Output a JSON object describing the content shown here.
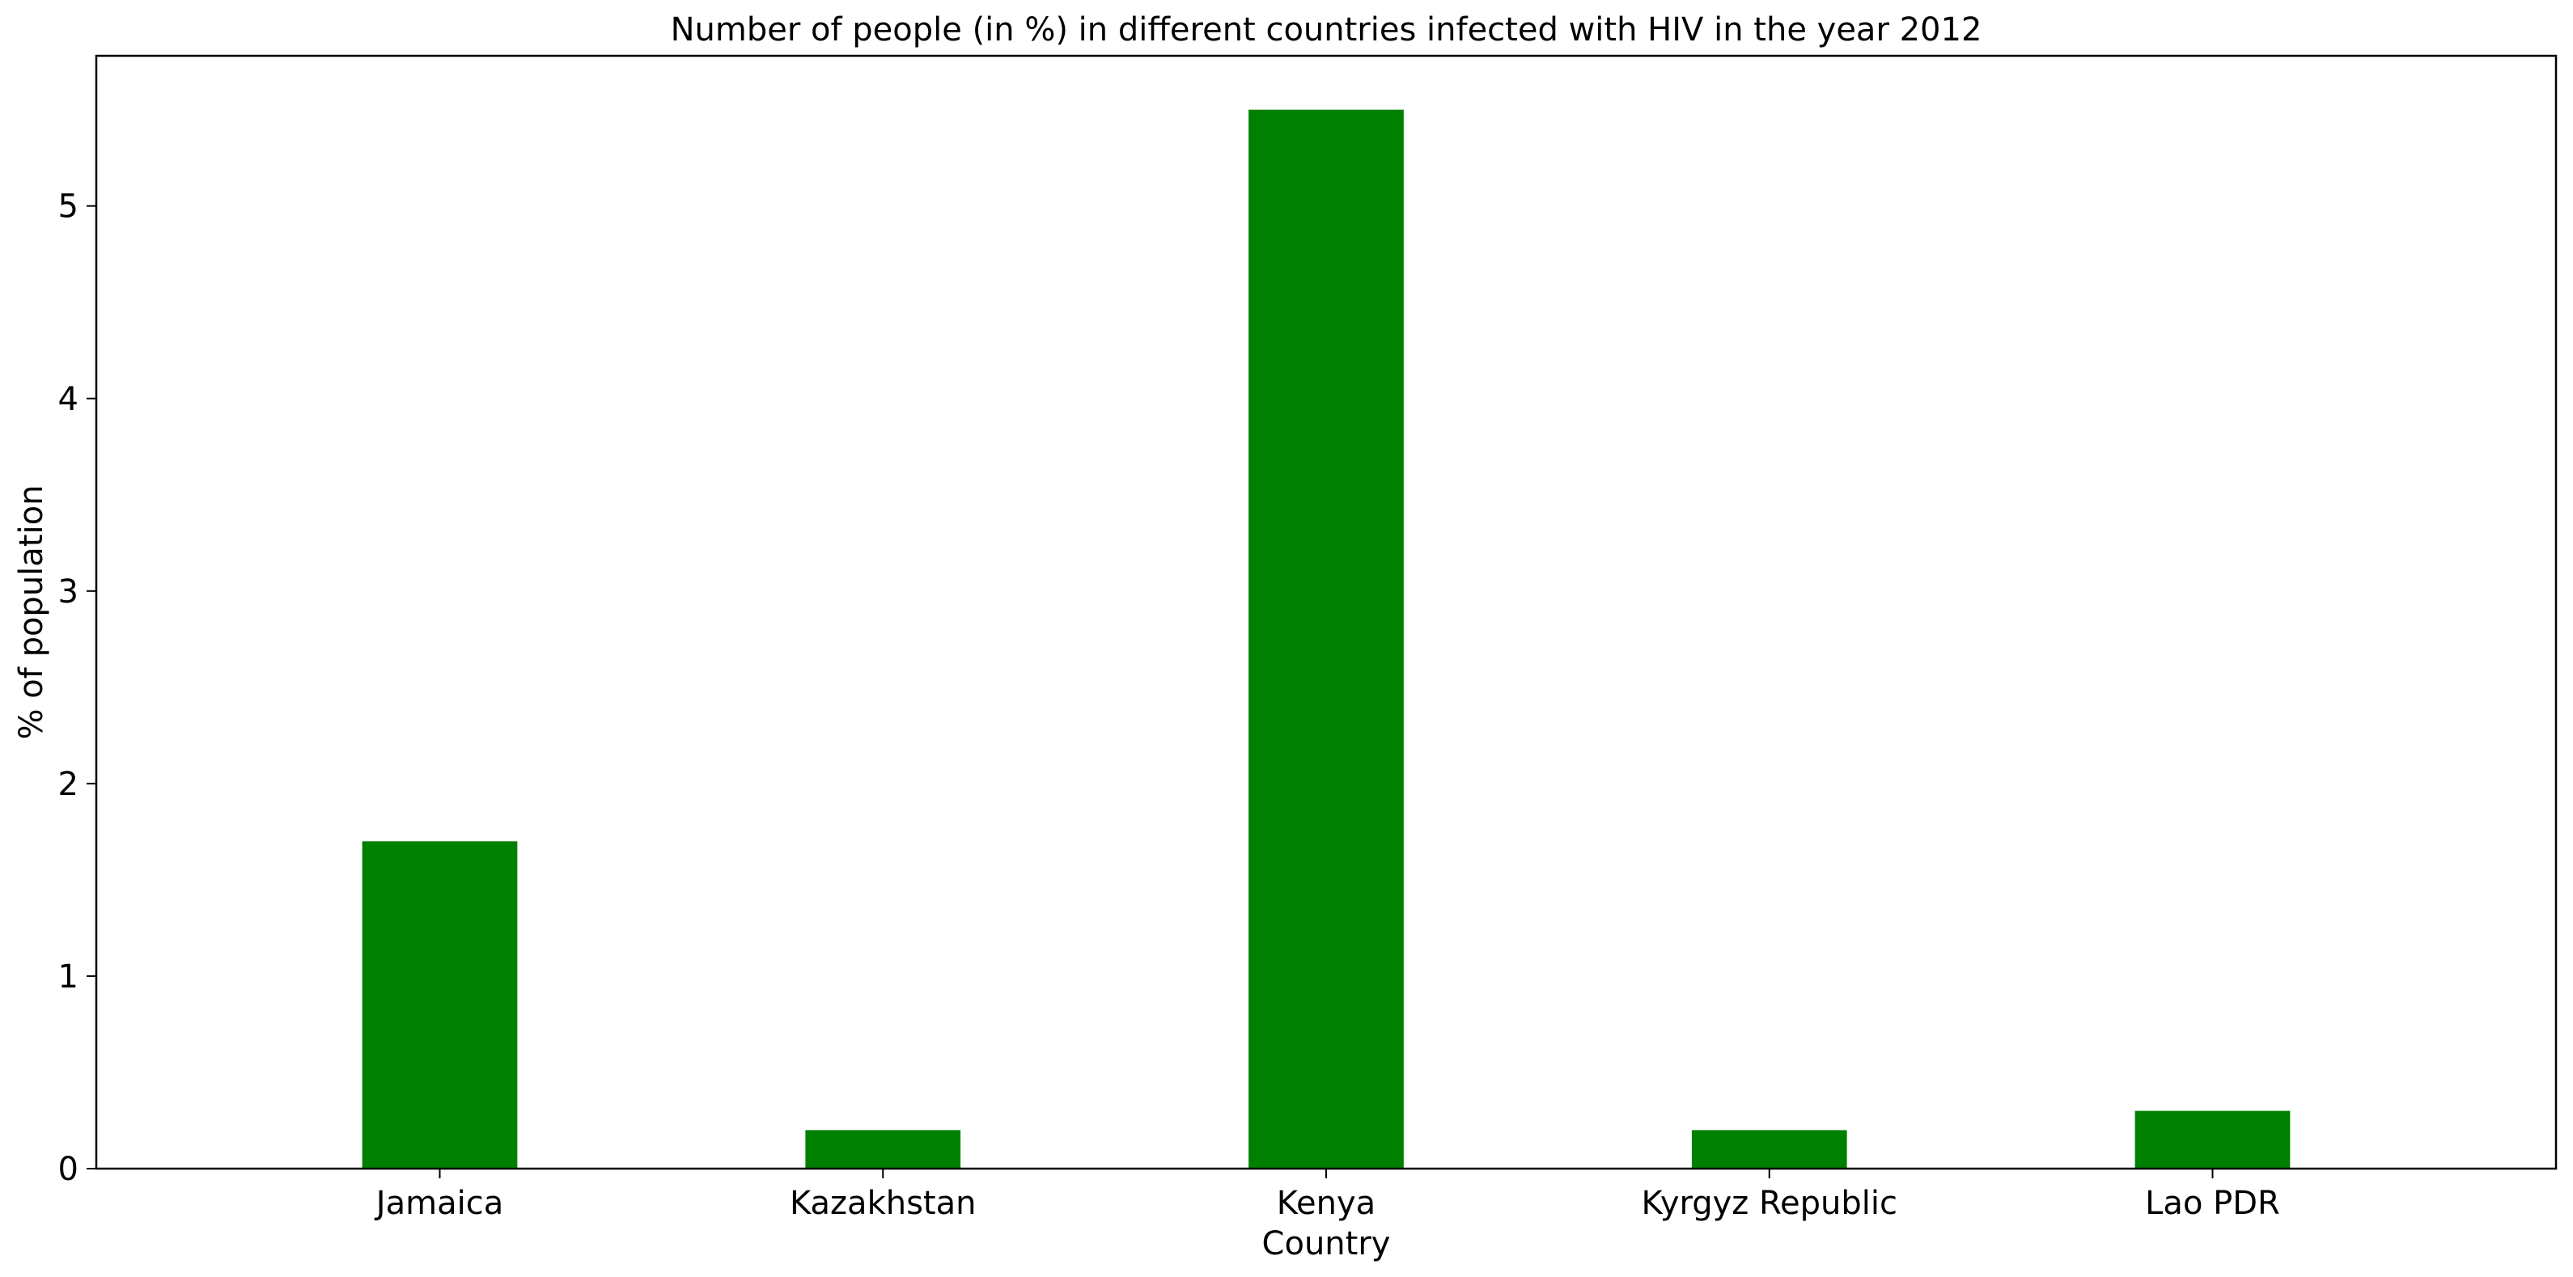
{
  "chart_data": {
    "type": "bar",
    "title": "Number of people (in %) in different countries infected with HIV in the year 2012",
    "xlabel": "Country",
    "ylabel": "% of population",
    "categories": [
      "Jamaica",
      "Kazakhstan",
      "Kenya",
      "Kyrgyz Republic",
      "Lao PDR"
    ],
    "values": [
      1.7,
      0.2,
      5.5,
      0.2,
      0.3
    ],
    "ylim": [
      0,
      5.78
    ],
    "yticks": [
      0,
      1,
      2,
      3,
      4,
      5
    ],
    "grid": false,
    "legend": "none",
    "bar_color": "#008000"
  }
}
